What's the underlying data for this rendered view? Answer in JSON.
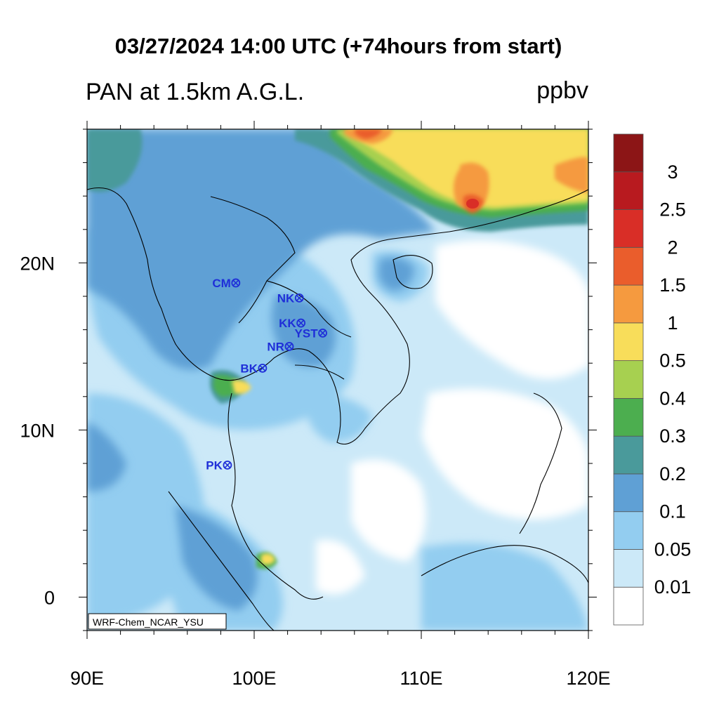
{
  "title": "03/27/2024 14:00 UTC (+74hours from start)",
  "left_title": "PAN at 1.5km A.G.L.",
  "units": "ppbv",
  "model_label": "WRF-Chem_NCAR_YSU",
  "axes": {
    "lon_ticks": [
      {
        "value": 90,
        "label": "90E"
      },
      {
        "value": 100,
        "label": "100E"
      },
      {
        "value": 110,
        "label": "110E"
      },
      {
        "value": 120,
        "label": "120E"
      }
    ],
    "lat_ticks": [
      {
        "value": 0,
        "label": "0"
      },
      {
        "value": 10,
        "label": "10N"
      },
      {
        "value": 20,
        "label": "20N"
      }
    ],
    "lon_range": [
      90,
      120
    ],
    "lat_range": [
      -2,
      28
    ]
  },
  "colorbar": {
    "colors": [
      "#ffffff",
      "#cce9f8",
      "#93cdf0",
      "#5fa0d5",
      "#4a9a9b",
      "#4cae4f",
      "#a7d050",
      "#f8dd5a",
      "#f59a3f",
      "#ea5d2c",
      "#d92e27",
      "#b81a1f",
      "#8c1516"
    ],
    "labels": [
      "0.01",
      "0.05",
      "0.1",
      "0.2",
      "0.3",
      "0.4",
      "0.5",
      "1",
      "1.5",
      "2",
      "2.5",
      "3"
    ]
  },
  "stations": [
    {
      "name": "CM",
      "lon": 98.9,
      "lat": 18.8
    },
    {
      "name": "NK",
      "lon": 102.7,
      "lat": 17.9
    },
    {
      "name": "KK",
      "lon": 102.8,
      "lat": 16.4
    },
    {
      "name": "YST",
      "lon": 104.1,
      "lat": 15.8
    },
    {
      "name": "NR",
      "lon": 102.1,
      "lat": 15.0
    },
    {
      "name": "BK",
      "lon": 100.5,
      "lat": 13.7
    },
    {
      "name": "PK",
      "lon": 98.4,
      "lat": 7.9
    }
  ]
}
